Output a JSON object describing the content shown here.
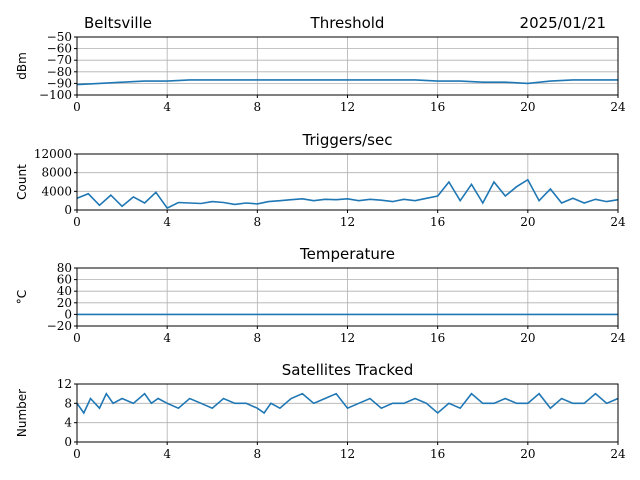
{
  "header": {
    "station": "Beltsville",
    "date": "2025/01/21"
  },
  "colors": {
    "series": "#1f77b4",
    "grid": "#b0b0b0",
    "axis": "#000000"
  },
  "chart_data": [
    {
      "type": "line",
      "title": "Threshold",
      "ylabel": "dBm",
      "xlim": [
        0,
        24
      ],
      "ylim": [
        -100,
        -50
      ],
      "xticks": [
        0,
        4,
        8,
        12,
        16,
        20,
        24
      ],
      "yticks": [
        -100,
        -90,
        -80,
        -70,
        -60,
        -50
      ],
      "grid": true,
      "series": [
        {
          "x": [
            0,
            1,
            2,
            3,
            4,
            5,
            6,
            7,
            8,
            9,
            10,
            11,
            12,
            13,
            14,
            15,
            16,
            17,
            18,
            19,
            20,
            21,
            22,
            23,
            24
          ],
          "values": [
            -91,
            -90,
            -89,
            -88,
            -88,
            -87,
            -87,
            -87,
            -87,
            -87,
            -87,
            -87,
            -87,
            -87,
            -87,
            -87,
            -88,
            -88,
            -89,
            -89,
            -90,
            -88,
            -87,
            -87,
            -87
          ]
        }
      ]
    },
    {
      "type": "line",
      "title": "Triggers/sec",
      "ylabel": "Count",
      "xlim": [
        0,
        24
      ],
      "ylim": [
        0,
        12000
      ],
      "xticks": [
        0,
        4,
        8,
        12,
        16,
        20,
        24
      ],
      "yticks": [
        0,
        4000,
        8000,
        12000
      ],
      "grid": true,
      "series": [
        {
          "x": [
            0,
            0.5,
            1,
            1.5,
            2,
            2.5,
            3,
            3.5,
            4,
            4.5,
            5,
            5.5,
            6,
            6.5,
            7,
            7.5,
            8,
            8.5,
            9,
            9.5,
            10,
            10.5,
            11,
            11.5,
            12,
            12.5,
            13,
            13.5,
            14,
            14.5,
            15,
            15.5,
            16,
            16.5,
            17,
            17.5,
            18,
            18.5,
            19,
            19.5,
            20,
            20.5,
            21,
            21.5,
            22,
            22.5,
            23,
            23.5,
            24
          ],
          "values": [
            2500,
            3500,
            1000,
            3200,
            800,
            2800,
            1500,
            3800,
            400,
            1600,
            1500,
            1400,
            1800,
            1600,
            1200,
            1500,
            1300,
            1800,
            2000,
            2200,
            2400,
            2000,
            2300,
            2200,
            2400,
            2000,
            2300,
            2100,
            1800,
            2300,
            2000,
            2500,
            3000,
            6000,
            2000,
            5500,
            1500,
            6000,
            3000,
            5000,
            6500,
            2000,
            4500,
            1500,
            2500,
            1500,
            2300,
            1800,
            2200
          ]
        }
      ]
    },
    {
      "type": "line",
      "title": "Temperature",
      "ylabel": "°C",
      "xlim": [
        0,
        24
      ],
      "ylim": [
        -20,
        80
      ],
      "xticks": [
        0,
        4,
        8,
        12,
        16,
        20,
        24
      ],
      "yticks": [
        -20,
        0,
        20,
        40,
        60,
        80
      ],
      "grid": true,
      "series": [
        {
          "x": [
            0,
            24
          ],
          "values": [
            0,
            0
          ]
        }
      ]
    },
    {
      "type": "line",
      "title": "Satellites Tracked",
      "ylabel": "Number",
      "xlim": [
        0,
        24
      ],
      "ylim": [
        0,
        12
      ],
      "xticks": [
        0,
        4,
        8,
        12,
        16,
        20,
        24
      ],
      "yticks": [
        0,
        4,
        8,
        12
      ],
      "grid": true,
      "series": [
        {
          "x": [
            0,
            0.3,
            0.6,
            1,
            1.3,
            1.6,
            2,
            2.5,
            3,
            3.3,
            3.6,
            4,
            4.5,
            5,
            5.5,
            6,
            6.5,
            7,
            7.5,
            8,
            8.3,
            8.6,
            9,
            9.5,
            10,
            10.5,
            11,
            11.5,
            12,
            12.5,
            13,
            13.5,
            14,
            14.5,
            15,
            15.5,
            16,
            16.5,
            17,
            17.5,
            18,
            18.5,
            19,
            19.5,
            20,
            20.5,
            21,
            21.5,
            22,
            22.5,
            23,
            23.5,
            24
          ],
          "values": [
            8,
            6,
            9,
            7,
            10,
            8,
            9,
            8,
            10,
            8,
            9,
            8,
            7,
            9,
            8,
            7,
            9,
            8,
            8,
            7,
            6,
            8,
            7,
            9,
            10,
            8,
            9,
            10,
            7,
            8,
            9,
            7,
            8,
            8,
            9,
            8,
            6,
            8,
            7,
            10,
            8,
            8,
            9,
            8,
            8,
            10,
            7,
            9,
            8,
            8,
            10,
            8,
            9
          ]
        }
      ]
    }
  ]
}
